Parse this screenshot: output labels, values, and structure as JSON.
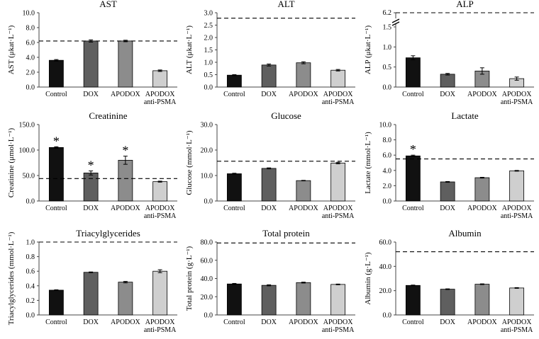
{
  "colors": {
    "control": "#111111",
    "dox": "#5f5f5f",
    "apodox": "#8c8c8c",
    "anti_psma": "#cfcfcf"
  },
  "chart_data": [
    {
      "type": "bar",
      "title": "AST",
      "ylabel": "AST (μkat·L⁻¹)",
      "categories": [
        "Control",
        "DOX",
        "APODOX",
        "APODOX\nanti-PSMA"
      ],
      "values": [
        3.6,
        6.2,
        6.2,
        2.2
      ],
      "errors": [
        0.1,
        0.15,
        0.1,
        0.1
      ],
      "ylim": [
        0,
        10
      ],
      "yticks": [
        "0.0",
        "2.0",
        "4.0",
        "6.0",
        "8.0",
        "10.0"
      ],
      "reference": 6.2,
      "stars": [],
      "grid": false,
      "legend": "none"
    },
    {
      "type": "bar",
      "title": "ALT",
      "ylabel": "ALT (μkat·L⁻¹)",
      "categories": [
        "Control",
        "DOX",
        "APODOX",
        "APODOX\nanti-PSMA"
      ],
      "values": [
        0.48,
        0.89,
        0.98,
        0.68
      ],
      "errors": [
        0.02,
        0.04,
        0.04,
        0.03
      ],
      "ylim": [
        0,
        3
      ],
      "yticks": [
        "0.0",
        "0.5",
        "1.0",
        "1.5",
        "2.0",
        "2.5",
        "3.0"
      ],
      "reference": 2.78,
      "stars": [],
      "grid": false,
      "legend": "none"
    },
    {
      "type": "bar",
      "title": "ALP",
      "ylabel": "ALP (μkat·L⁻¹)",
      "categories": [
        "Control",
        "DOX",
        "APODOX",
        "APODOX\nanti-PSMA"
      ],
      "values": [
        0.73,
        0.32,
        0.4,
        0.21
      ],
      "errors": [
        0.05,
        0.02,
        0.08,
        0.04
      ],
      "ylim": [
        0,
        1.5
      ],
      "yticks": [
        "0.0",
        "0.5",
        "1.0",
        "1.5"
      ],
      "broken_axis_top_label": "6.2",
      "reference": 6.2,
      "stars": [],
      "grid": false,
      "legend": "none"
    },
    {
      "type": "bar",
      "title": "Creatinine",
      "ylabel": "Creatinine (μmol·L⁻¹)",
      "categories": [
        "Control",
        "DOX",
        "APODOX",
        "APODOX\nanti-PSMA"
      ],
      "values": [
        105,
        55,
        80,
        38
      ],
      "errors": [
        1.5,
        4,
        8,
        1
      ],
      "ylim": [
        0,
        150
      ],
      "yticks": [
        "0.0",
        "50.0",
        "100.0",
        "150.0"
      ],
      "reference": 44,
      "stars": [
        "*",
        "*",
        "*",
        ""
      ],
      "grid": false,
      "legend": "none"
    },
    {
      "type": "bar",
      "title": "Glucose",
      "ylabel": "Glucose (mmol·L⁻¹)",
      "categories": [
        "Control",
        "DOX",
        "APODOX",
        "APODOX\nanti-PSMA"
      ],
      "values": [
        10.7,
        12.8,
        8.0,
        14.9
      ],
      "errors": [
        0.2,
        0.2,
        0.1,
        0.3
      ],
      "ylim": [
        0,
        30
      ],
      "yticks": [
        "0.0",
        "10.0",
        "20.0",
        "30.0"
      ],
      "reference": 15.6,
      "stars": [],
      "grid": false,
      "legend": "none"
    },
    {
      "type": "bar",
      "title": "Lactate",
      "ylabel": "Lactate (mmol·L⁻¹)",
      "categories": [
        "Control",
        "DOX",
        "APODOX",
        "APODOX\nanti-PSMA"
      ],
      "values": [
        5.9,
        2.5,
        3.05,
        3.95
      ],
      "errors": [
        0.1,
        0.05,
        0.05,
        0.05
      ],
      "ylim": [
        0,
        10
      ],
      "yticks": [
        "0.0",
        "2.0",
        "4.0",
        "6.0",
        "8.0",
        "10.0"
      ],
      "reference": 5.5,
      "stars": [
        "*",
        "",
        "",
        ""
      ],
      "grid": false,
      "legend": "none"
    },
    {
      "type": "bar",
      "title": "Triacylglycerides",
      "ylabel": "Triacylglycerides (mmol·L⁻¹)",
      "categories": [
        "Control",
        "DOX",
        "APODOX",
        "APODOX\nanti-PSMA"
      ],
      "values": [
        0.34,
        0.585,
        0.45,
        0.6
      ],
      "errors": [
        0.005,
        0.005,
        0.01,
        0.02
      ],
      "ylim": [
        0,
        1
      ],
      "yticks": [
        "0.0",
        "0.2",
        "0.4",
        "0.6",
        "0.8",
        "1.0"
      ],
      "reference": 1.0,
      "stars": [],
      "grid": false,
      "legend": "none"
    },
    {
      "type": "bar",
      "title": "Total protein",
      "ylabel": "Total protein (g·L⁻¹)",
      "categories": [
        "Control",
        "DOX",
        "APODOX",
        "APODOX\nanti-PSMA"
      ],
      "values": [
        34,
        32.5,
        35.5,
        33.5
      ],
      "errors": [
        0.6,
        0.6,
        0.5,
        0.4
      ],
      "ylim": [
        0,
        80
      ],
      "yticks": [
        "0.0",
        "20.0",
        "40.0",
        "60.0",
        "80.0"
      ],
      "reference": 79,
      "stars": [],
      "grid": false,
      "legend": "none"
    },
    {
      "type": "bar",
      "title": "Albumin",
      "ylabel": "Albumin (g·L⁻¹)",
      "categories": [
        "Control",
        "DOX",
        "APODOX",
        "APODOX\nanti-PSMA"
      ],
      "values": [
        24.3,
        21.2,
        25.3,
        22.2
      ],
      "errors": [
        0.3,
        0.3,
        0.3,
        0.3
      ],
      "ylim": [
        0,
        60
      ],
      "yticks": [
        "0.0",
        "20.0",
        "40.0",
        "60.0"
      ],
      "reference": 52,
      "stars": [],
      "grid": false,
      "legend": "none"
    }
  ]
}
